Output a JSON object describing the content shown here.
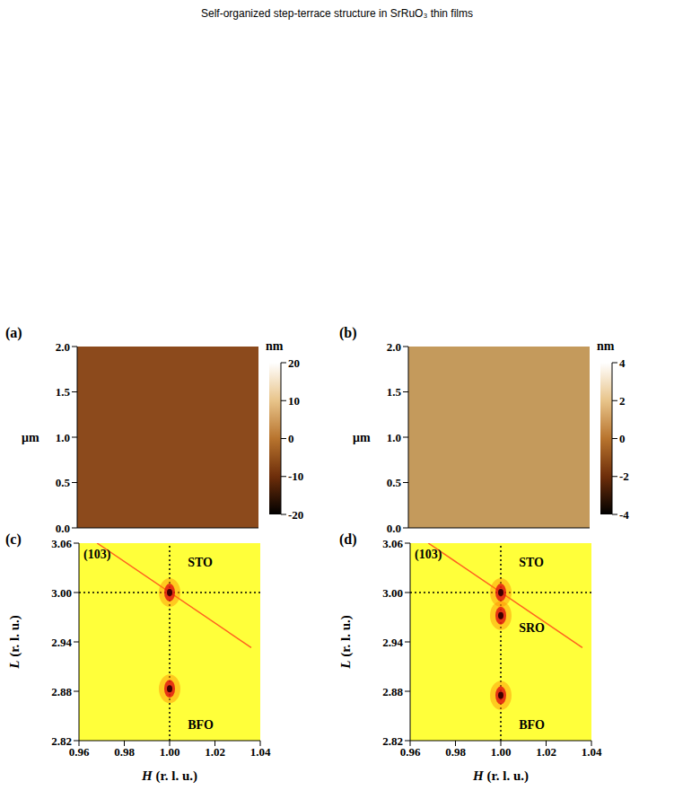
{
  "header": "Self-organized step-terrace structure in SrRuO₃ thin films",
  "chart_data": [
    {
      "type": "image",
      "panel": "(a)",
      "ylabel": "μm",
      "xlim": [
        0,
        2
      ],
      "ylim": [
        0,
        2
      ],
      "xticks": [
        0,
        0.5,
        1,
        1.5,
        2
      ],
      "yticks": [
        {
          "value": 0,
          "label": "0.0"
        },
        0.5,
        {
          "value": 1,
          "label": "1.0"
        },
        1.5,
        {
          "value": 2,
          "label": "2.0"
        }
      ],
      "tick_labels": "y",
      "color": "#8c4a1c",
      "colorbar": {
        "label": "nm",
        "range": [
          -20,
          20
        ],
        "ticks": [
          -20,
          -10,
          0,
          10,
          20
        ]
      }
    },
    {
      "type": "image",
      "panel": "(b)",
      "ylabel": "μm",
      "xlim": [
        0,
        2
      ],
      "ylim": [
        0,
        2
      ],
      "xticks": [
        0,
        0.5,
        1,
        1.5,
        2
      ],
      "yticks": [
        {
          "value": 0,
          "label": "0.0"
        },
        0.5,
        {
          "value": 1,
          "label": "1.0"
        },
        1.5,
        {
          "value": 2,
          "label": "2.0"
        }
      ],
      "tick_labels": "y",
      "color": "#c49a5c",
      "colorbar": {
        "label": "nm",
        "range": [
          -4,
          4
        ],
        "ticks": [
          -4,
          -2,
          0,
          2,
          4
        ]
      }
    },
    {
      "type": "map",
      "panel": "(c)",
      "xlabel": "H (r. l. u.)",
      "ylabel": "L (r. l. u.)",
      "xlim": [
        0.96,
        1.04
      ],
      "ylim": [
        2.82,
        3.06
      ],
      "xticks": [
        0.96,
        0.98,
        {
          "value": 1,
          "label": "1.00"
        },
        1.02,
        1.04
      ],
      "yticks": [
        2.82,
        2.88,
        2.94,
        {
          "value": 3,
          "label": "3.00"
        },
        3.06
      ],
      "color": "#ffff3a",
      "ref_lines": {
        "x": 1,
        "y": 3
      },
      "streak": {
        "x": [
          0.968,
          1.036
        ],
        "y": [
          3.06,
          2.933
        ]
      },
      "peaks": {
        "x": [
          1.0,
          1.0
        ],
        "y": [
          3.0,
          2.883
        ]
      },
      "annotations": [
        {
          "text": "(103)",
          "x": 0.962,
          "y": 3.045
        },
        {
          "text": "STO",
          "x": 1.008,
          "y": 3.035
        },
        {
          "text": "BFO",
          "x": 1.008,
          "y": 2.838
        }
      ]
    },
    {
      "type": "map",
      "panel": "(d)",
      "xlabel": "H (r. l. u.)",
      "ylabel": "L (r. l. u.)",
      "xlim": [
        0.96,
        1.04
      ],
      "ylim": [
        2.82,
        3.06
      ],
      "xticks": [
        0.96,
        0.98,
        {
          "value": 1,
          "label": "1.00"
        },
        1.02,
        1.04
      ],
      "yticks": [
        2.82,
        2.88,
        2.94,
        {
          "value": 3,
          "label": "3.00"
        },
        3.06
      ],
      "color": "#ffff3a",
      "ref_lines": {
        "x": 1,
        "y": 3
      },
      "streak": {
        "x": [
          0.968,
          1.036
        ],
        "y": [
          3.06,
          2.933
        ]
      },
      "peaks": {
        "x": [
          1.0,
          1.0,
          1.0
        ],
        "y": [
          3.0,
          2.972,
          2.875
        ]
      },
      "annotations": [
        {
          "text": "(103)",
          "x": 0.962,
          "y": 3.045
        },
        {
          "text": "STO",
          "x": 1.008,
          "y": 3.035
        },
        {
          "text": "SRO",
          "x": 1.008,
          "y": 2.955
        },
        {
          "text": "BFO",
          "x": 1.008,
          "y": 2.838
        }
      ]
    }
  ]
}
